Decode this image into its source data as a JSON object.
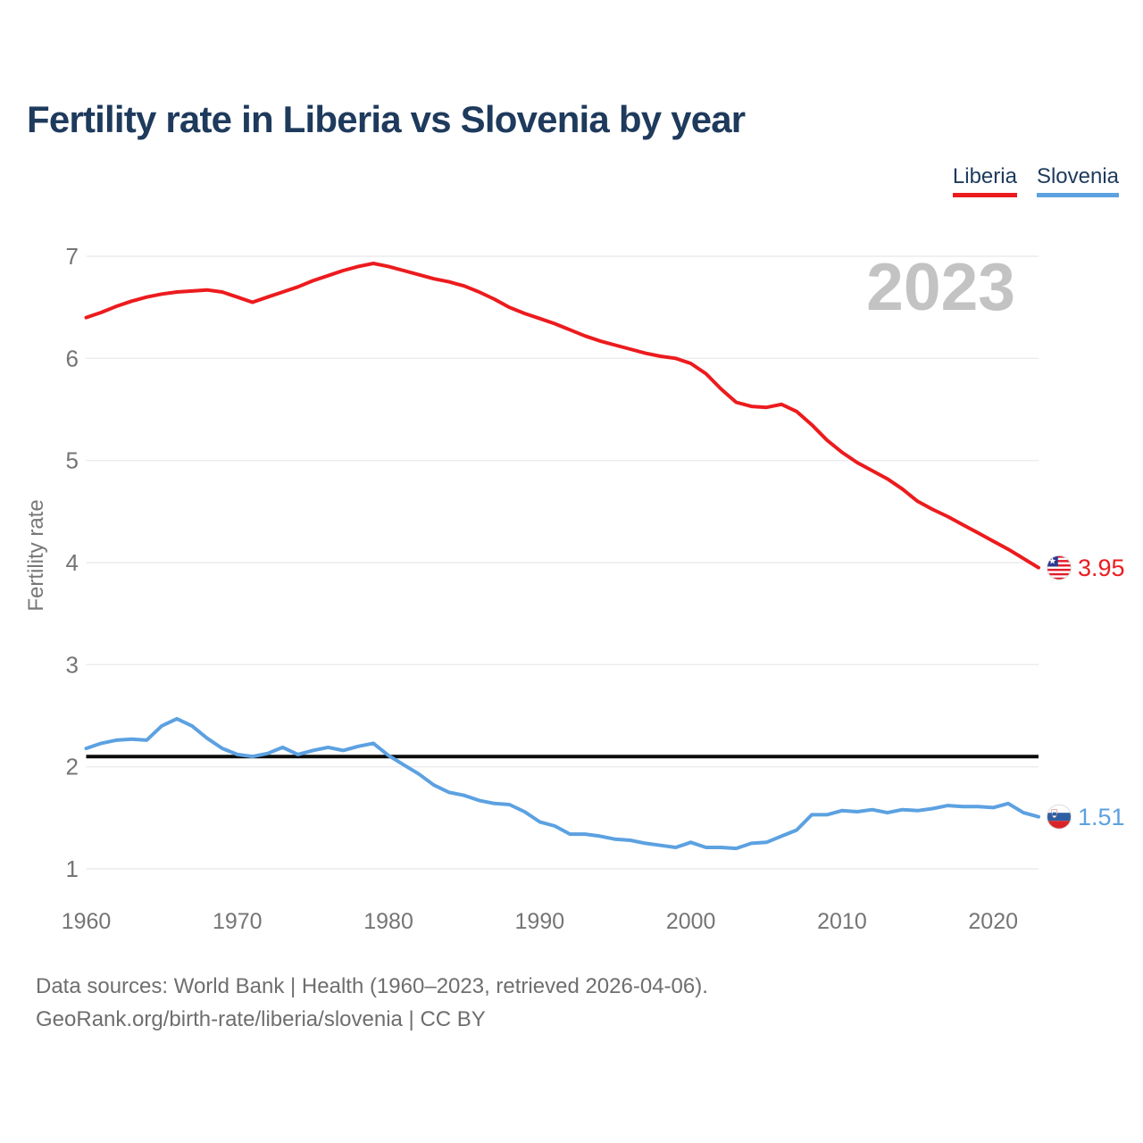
{
  "title": "Fertility rate in Liberia vs Slovenia by year",
  "watermark": "2023",
  "legend": {
    "items": [
      {
        "id": "liberia",
        "label": "Liberia"
      },
      {
        "id": "slovenia",
        "label": "Slovenia"
      }
    ]
  },
  "colors": {
    "liberia_red": "#ec1b1e",
    "slovenia_blue": "#5ca1e1",
    "title_navy": "#1e3a5c",
    "axis_gray": "#757575",
    "watermark_gray": "#c3c3c3",
    "gridline_gray": "#ebebeb",
    "footer_gray": "#6e6e6e",
    "reference_black": "#0a0a0a"
  },
  "chart_data": {
    "type": "line",
    "title": "Fertility rate in Liberia vs Slovenia by year",
    "xlabel": "",
    "ylabel": "Fertility rate",
    "xlim": [
      1960,
      2023
    ],
    "ylim": [
      1,
      7
    ],
    "yticks": [
      1,
      2,
      3,
      4,
      5,
      6,
      7
    ],
    "xticks": [
      1960,
      1970,
      1980,
      1990,
      2000,
      2010,
      2020
    ],
    "grid": "horizontal",
    "legend_position": "top-right",
    "reference_line": {
      "value": 2.1
    },
    "x": [
      1960,
      1961,
      1962,
      1963,
      1964,
      1965,
      1966,
      1967,
      1968,
      1969,
      1970,
      1971,
      1972,
      1973,
      1974,
      1975,
      1976,
      1977,
      1978,
      1979,
      1980,
      1981,
      1982,
      1983,
      1984,
      1985,
      1986,
      1987,
      1988,
      1989,
      1990,
      1991,
      1992,
      1993,
      1994,
      1995,
      1996,
      1997,
      1998,
      1999,
      2000,
      2001,
      2002,
      2003,
      2004,
      2005,
      2006,
      2007,
      2008,
      2009,
      2010,
      2011,
      2012,
      2013,
      2014,
      2015,
      2016,
      2017,
      2018,
      2019,
      2020,
      2021,
      2022,
      2023
    ],
    "series": [
      {
        "id": "liberia",
        "name": "Liberia",
        "end_label": "3.95",
        "values": [
          6.4,
          6.45,
          6.51,
          6.56,
          6.6,
          6.63,
          6.65,
          6.66,
          6.67,
          6.65,
          6.6,
          6.55,
          6.6,
          6.65,
          6.7,
          6.76,
          6.81,
          6.86,
          6.9,
          6.93,
          6.9,
          6.86,
          6.82,
          6.78,
          6.75,
          6.71,
          6.65,
          6.58,
          6.5,
          6.44,
          6.39,
          6.34,
          6.28,
          6.22,
          6.17,
          6.13,
          6.09,
          6.05,
          6.02,
          6.0,
          5.95,
          5.85,
          5.7,
          5.57,
          5.53,
          5.52,
          5.55,
          5.48,
          5.35,
          5.2,
          5.08,
          4.98,
          4.9,
          4.82,
          4.72,
          4.6,
          4.52,
          4.45,
          4.37,
          4.29,
          4.21,
          4.13,
          4.04,
          3.95
        ]
      },
      {
        "id": "slovenia",
        "name": "Slovenia",
        "end_label": "1.51",
        "values": [
          2.18,
          2.23,
          2.26,
          2.27,
          2.26,
          2.4,
          2.47,
          2.4,
          2.28,
          2.18,
          2.12,
          2.1,
          2.13,
          2.19,
          2.12,
          2.16,
          2.19,
          2.16,
          2.2,
          2.23,
          2.11,
          2.02,
          1.93,
          1.82,
          1.75,
          1.72,
          1.67,
          1.64,
          1.63,
          1.56,
          1.46,
          1.42,
          1.34,
          1.34,
          1.32,
          1.29,
          1.28,
          1.25,
          1.23,
          1.21,
          1.26,
          1.21,
          1.21,
          1.2,
          1.25,
          1.26,
          1.32,
          1.38,
          1.53,
          1.53,
          1.57,
          1.56,
          1.58,
          1.55,
          1.58,
          1.57,
          1.59,
          1.62,
          1.61,
          1.61,
          1.6,
          1.64,
          1.55,
          1.51
        ]
      }
    ]
  },
  "footer": {
    "line1": "Data sources: World Bank | Health (1960–2023, retrieved 2026-04-06).",
    "line2": "GeoRank.org/birth-rate/liberia/slovenia | CC BY"
  }
}
